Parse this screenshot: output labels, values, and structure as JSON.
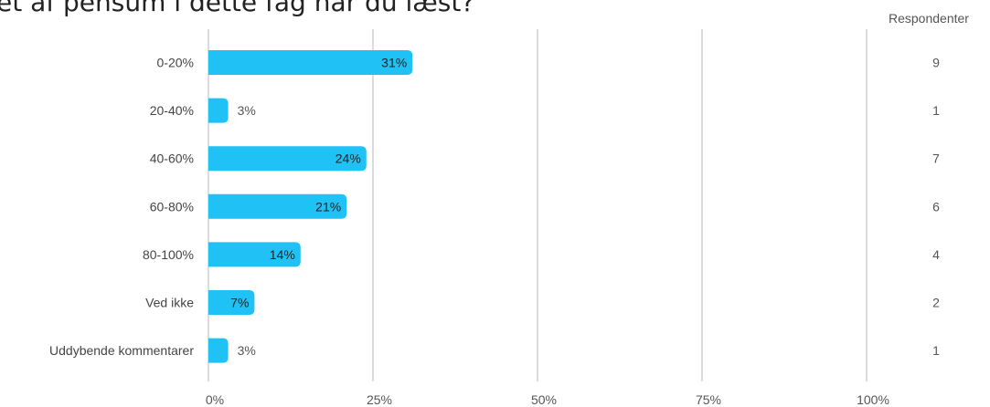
{
  "title": "et af pensum i dette fag har du læst?",
  "respondents_header": "Respondenter",
  "colors": {
    "bar": "#20c1f4",
    "grid": "#c8c8c8",
    "text": "#444444"
  },
  "chart_data": {
    "type": "bar",
    "orientation": "horizontal",
    "categories": [
      "0-20%",
      "20-40%",
      "40-60%",
      "60-80%",
      "80-100%",
      "Ved ikke",
      "Uddybende kommentarer"
    ],
    "values": [
      31,
      3,
      24,
      21,
      14,
      7,
      3
    ],
    "value_labels": [
      "31%",
      "3%",
      "24%",
      "21%",
      "14%",
      "7%",
      "3%"
    ],
    "respondents": [
      "9",
      "1",
      "7",
      "6",
      "4",
      "2",
      "1"
    ],
    "xticks": [
      "0%",
      "25%",
      "50%",
      "75%",
      "100%"
    ],
    "xlim": [
      0,
      100
    ],
    "grid": true
  }
}
